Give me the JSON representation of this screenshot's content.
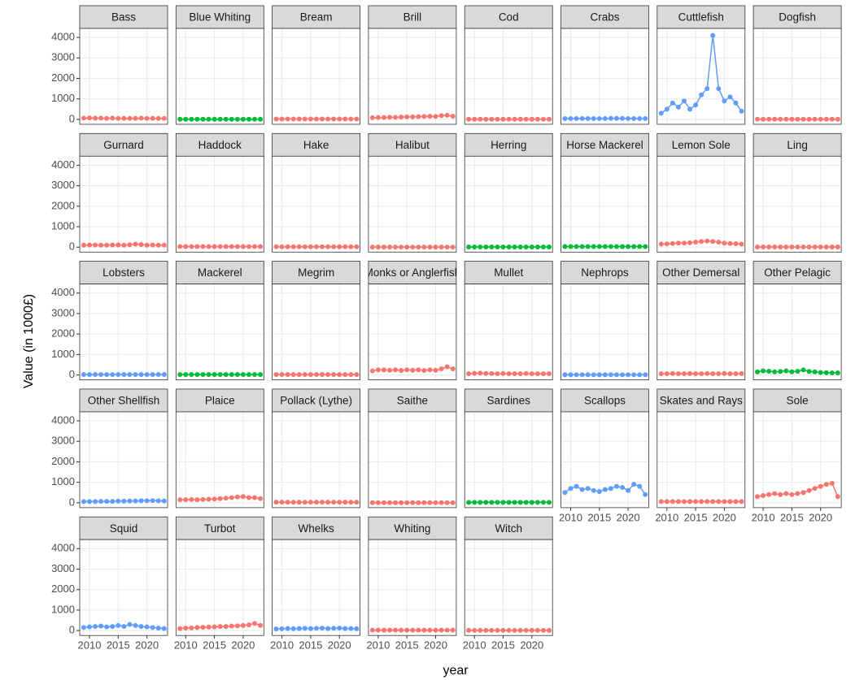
{
  "chart_data": {
    "type": "line",
    "x_label": "year",
    "y_label": "Value (in 1000£)",
    "x": [
      2009,
      2010,
      2011,
      2012,
      2013,
      2014,
      2015,
      2016,
      2017,
      2018,
      2019,
      2020,
      2021,
      2022,
      2023
    ],
    "xlim": [
      2008.3,
      2023.6
    ],
    "xticks": [
      2010,
      2015,
      2020
    ],
    "ylim": [
      -240,
      4440
    ],
    "yticks": [
      0,
      1000,
      2000,
      3000,
      4000
    ],
    "grid": true,
    "columns": 8,
    "series": [
      {
        "name": "Bass",
        "color": "#F8766D",
        "values": [
          60,
          70,
          60,
          60,
          50,
          60,
          50,
          50,
          50,
          50,
          60,
          50,
          50,
          50,
          50
        ]
      },
      {
        "name": "Blue Whiting",
        "color": "#00BA38",
        "values": [
          10,
          10,
          10,
          10,
          10,
          10,
          10,
          10,
          10,
          10,
          10,
          10,
          10,
          10,
          10
        ]
      },
      {
        "name": "Bream",
        "color": "#F8766D",
        "values": [
          20,
          20,
          20,
          20,
          20,
          20,
          20,
          20,
          20,
          20,
          20,
          20,
          20,
          20,
          20
        ]
      },
      {
        "name": "Brill",
        "color": "#F8766D",
        "values": [
          80,
          90,
          90,
          100,
          100,
          110,
          120,
          120,
          130,
          140,
          150,
          140,
          180,
          200,
          150
        ]
      },
      {
        "name": "Cod",
        "color": "#F8766D",
        "values": [
          10,
          10,
          10,
          10,
          10,
          10,
          10,
          10,
          10,
          10,
          10,
          10,
          10,
          10,
          10
        ]
      },
      {
        "name": "Crabs",
        "color": "#619CFF",
        "values": [
          40,
          40,
          40,
          40,
          40,
          40,
          40,
          40,
          50,
          50,
          50,
          40,
          40,
          40,
          40
        ]
      },
      {
        "name": "Cuttlefish",
        "color": "#619CFF",
        "values": [
          300,
          500,
          800,
          600,
          900,
          500,
          700,
          1200,
          1500,
          4100,
          1500,
          900,
          1100,
          800,
          400
        ]
      },
      {
        "name": "Dogfish",
        "color": "#F8766D",
        "values": [
          10,
          10,
          10,
          10,
          10,
          10,
          10,
          10,
          10,
          10,
          10,
          10,
          10,
          10,
          10
        ]
      },
      {
        "name": "Gurnard",
        "color": "#F8766D",
        "values": [
          100,
          110,
          110,
          100,
          100,
          110,
          110,
          100,
          120,
          150,
          130,
          100,
          110,
          100,
          100
        ]
      },
      {
        "name": "Haddock",
        "color": "#F8766D",
        "values": [
          30,
          30,
          30,
          30,
          30,
          30,
          30,
          30,
          30,
          30,
          30,
          30,
          30,
          30,
          30
        ]
      },
      {
        "name": "Hake",
        "color": "#F8766D",
        "values": [
          20,
          20,
          20,
          20,
          20,
          20,
          20,
          20,
          20,
          20,
          20,
          20,
          20,
          20,
          20
        ]
      },
      {
        "name": "Halibut",
        "color": "#F8766D",
        "values": [
          5,
          5,
          5,
          5,
          5,
          5,
          5,
          5,
          5,
          5,
          5,
          5,
          5,
          5,
          5
        ]
      },
      {
        "name": "Herring",
        "color": "#00BA38",
        "values": [
          10,
          10,
          10,
          10,
          10,
          10,
          10,
          10,
          10,
          10,
          10,
          10,
          10,
          10,
          10
        ]
      },
      {
        "name": "Horse Mackerel",
        "color": "#00BA38",
        "values": [
          30,
          30,
          30,
          30,
          30,
          30,
          30,
          30,
          30,
          30,
          30,
          30,
          30,
          30,
          30
        ]
      },
      {
        "name": "Lemon Sole",
        "color": "#F8766D",
        "values": [
          150,
          160,
          180,
          200,
          200,
          220,
          250,
          280,
          300,
          280,
          250,
          200,
          180,
          170,
          150
        ]
      },
      {
        "name": "Ling",
        "color": "#F8766D",
        "values": [
          10,
          10,
          10,
          10,
          10,
          10,
          10,
          10,
          10,
          10,
          10,
          10,
          10,
          10,
          10
        ]
      },
      {
        "name": "Lobsters",
        "color": "#619CFF",
        "values": [
          20,
          20,
          20,
          20,
          20,
          20,
          20,
          20,
          20,
          20,
          20,
          20,
          20,
          20,
          20
        ]
      },
      {
        "name": "Mackerel",
        "color": "#00BA38",
        "values": [
          20,
          20,
          20,
          20,
          20,
          20,
          20,
          20,
          20,
          20,
          20,
          20,
          20,
          20,
          20
        ]
      },
      {
        "name": "Megrim",
        "color": "#F8766D",
        "values": [
          20,
          20,
          20,
          20,
          20,
          20,
          20,
          20,
          20,
          20,
          20,
          20,
          20,
          20,
          20
        ]
      },
      {
        "name": "Monks or Anglerfish",
        "color": "#F8766D",
        "values": [
          200,
          250,
          250,
          230,
          250,
          220,
          250,
          230,
          250,
          220,
          250,
          230,
          300,
          400,
          300
        ]
      },
      {
        "name": "Mullet",
        "color": "#F8766D",
        "values": [
          60,
          80,
          90,
          70,
          70,
          60,
          70,
          60,
          60,
          60,
          70,
          60,
          60,
          60,
          60
        ]
      },
      {
        "name": "Nephrops",
        "color": "#619CFF",
        "values": [
          10,
          10,
          10,
          10,
          10,
          10,
          10,
          10,
          10,
          10,
          10,
          10,
          10,
          10,
          10
        ]
      },
      {
        "name": "Other Demersal",
        "color": "#F8766D",
        "values": [
          60,
          60,
          70,
          60,
          60,
          70,
          60,
          60,
          70,
          60,
          60,
          70,
          60,
          60,
          70
        ]
      },
      {
        "name": "Other Pelagic",
        "color": "#00BA38",
        "values": [
          150,
          200,
          180,
          150,
          170,
          200,
          150,
          180,
          250,
          170,
          150,
          120,
          110,
          100,
          100
        ]
      },
      {
        "name": "Other Shellfish",
        "color": "#619CFF",
        "values": [
          60,
          60,
          60,
          70,
          70,
          70,
          80,
          80,
          90,
          90,
          100,
          100,
          110,
          100,
          90
        ]
      },
      {
        "name": "Plaice",
        "color": "#F8766D",
        "values": [
          150,
          150,
          160,
          150,
          160,
          170,
          180,
          200,
          220,
          250,
          280,
          300,
          250,
          250,
          200
        ]
      },
      {
        "name": "Pollack (Lythe)",
        "color": "#F8766D",
        "values": [
          30,
          30,
          30,
          30,
          30,
          30,
          30,
          30,
          30,
          30,
          30,
          30,
          30,
          30,
          30
        ]
      },
      {
        "name": "Saithe",
        "color": "#F8766D",
        "values": [
          5,
          5,
          5,
          5,
          5,
          5,
          5,
          5,
          5,
          5,
          5,
          5,
          5,
          5,
          5
        ]
      },
      {
        "name": "Sardines",
        "color": "#00BA38",
        "values": [
          20,
          20,
          20,
          20,
          20,
          20,
          20,
          20,
          20,
          20,
          20,
          20,
          20,
          20,
          20
        ]
      },
      {
        "name": "Scallops",
        "color": "#619CFF",
        "values": [
          500,
          700,
          800,
          650,
          700,
          600,
          550,
          650,
          700,
          800,
          750,
          600,
          900,
          800,
          400
        ]
      },
      {
        "name": "Skates and Rays",
        "color": "#F8766D",
        "values": [
          60,
          60,
          60,
          60,
          60,
          60,
          60,
          60,
          60,
          60,
          60,
          60,
          60,
          60,
          60
        ]
      },
      {
        "name": "Sole",
        "color": "#F8766D",
        "values": [
          300,
          350,
          400,
          450,
          400,
          450,
          400,
          450,
          500,
          600,
          700,
          800,
          900,
          950,
          300
        ]
      },
      {
        "name": "Squid",
        "color": "#619CFF",
        "values": [
          150,
          180,
          200,
          220,
          180,
          200,
          250,
          200,
          300,
          250,
          200,
          180,
          150,
          120,
          100
        ]
      },
      {
        "name": "Turbot",
        "color": "#F8766D",
        "values": [
          100,
          120,
          130,
          150,
          160,
          170,
          180,
          200,
          200,
          220,
          230,
          250,
          280,
          350,
          250
        ]
      },
      {
        "name": "Whelks",
        "color": "#619CFF",
        "values": [
          80,
          90,
          100,
          90,
          100,
          110,
          100,
          110,
          120,
          100,
          110,
          120,
          100,
          100,
          90
        ]
      },
      {
        "name": "Whiting",
        "color": "#F8766D",
        "values": [
          20,
          20,
          20,
          20,
          20,
          20,
          20,
          20,
          20,
          20,
          20,
          20,
          20,
          20,
          20
        ]
      },
      {
        "name": "Witch",
        "color": "#F8766D",
        "values": [
          10,
          10,
          10,
          10,
          10,
          10,
          10,
          10,
          10,
          10,
          10,
          10,
          10,
          10,
          10
        ]
      }
    ]
  }
}
